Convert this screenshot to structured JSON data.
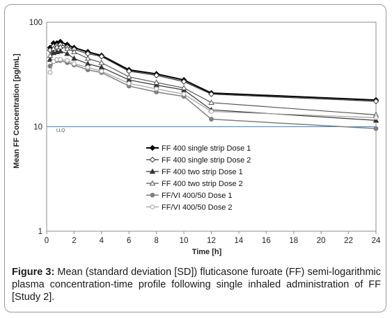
{
  "chart_data": {
    "type": "line",
    "xlabel": "Time [h]",
    "ylabel": "Mean FF Concentration [pg/mL]",
    "yscale": "log",
    "ylim": [
      1,
      100
    ],
    "xlim": [
      0,
      24
    ],
    "x_ticks": [
      0,
      2,
      4,
      6,
      8,
      10,
      12,
      14,
      16,
      18,
      20,
      22,
      24
    ],
    "y_ticks": [
      1,
      10,
      100
    ],
    "grid": "horizontal major",
    "legend_position": "center-left",
    "reference_line": {
      "label": "LLQ",
      "y": 10
    },
    "series": [
      {
        "name": "FF 400 single strip Dose 1",
        "color": "#000000",
        "marker": "diamond",
        "filled": true,
        "line_width": 2,
        "x": [
          0.25,
          0.5,
          0.75,
          1,
          1.5,
          2,
          3,
          4,
          6,
          8,
          10,
          12,
          24
        ],
        "y": [
          57,
          63,
          63,
          65,
          61,
          57,
          52,
          48,
          35,
          32,
          28,
          21,
          18
        ]
      },
      {
        "name": "FF 400 single strip Dose 2",
        "color": "#333333",
        "marker": "diamond",
        "filled": false,
        "line_width": 1.2,
        "x": [
          0.25,
          0.5,
          0.75,
          1,
          1.5,
          2,
          3,
          4,
          6,
          8,
          10,
          12,
          24
        ],
        "y": [
          54,
          59,
          60,
          61,
          58,
          55,
          50,
          47,
          34,
          31,
          27,
          20.5,
          17.5
        ]
      },
      {
        "name": "FF 400 two strip Dose 1",
        "color": "#333333",
        "marker": "triangle",
        "filled": true,
        "line_width": 1.2,
        "x": [
          0.25,
          0.5,
          0.75,
          1,
          1.5,
          2,
          3,
          4,
          6,
          8,
          10,
          12,
          24
        ],
        "y": [
          44,
          51,
          52,
          53,
          50,
          45,
          40,
          37,
          28,
          25,
          22.5,
          14.5,
          11.5
        ]
      },
      {
        "name": "FF 400 two strip Dose 2",
        "color": "#555555",
        "marker": "triangle",
        "filled": false,
        "line_width": 1.2,
        "x": [
          0.25,
          0.5,
          0.75,
          1,
          1.5,
          2,
          3,
          4,
          6,
          8,
          10,
          12,
          24
        ],
        "y": [
          48,
          56,
          58,
          58,
          56,
          52,
          45,
          41,
          30,
          26.5,
          23.5,
          17,
          13
        ]
      },
      {
        "name": "FF/VI 400/50 Dose 1",
        "color": "#7f7f7f",
        "marker": "circle",
        "filled": true,
        "line_width": 1.5,
        "x": [
          0.25,
          0.5,
          0.75,
          1,
          1.5,
          2,
          3,
          4,
          6,
          8,
          10,
          12,
          24
        ],
        "y": [
          38,
          42,
          43,
          43,
          41,
          39,
          35,
          33,
          24.5,
          21.5,
          19.5,
          11.8,
          9.6
        ]
      },
      {
        "name": "FF/VI 400/50 Dose 2",
        "color": "#a0a0a0",
        "marker": "circle",
        "filled": false,
        "line_width": 1.2,
        "x": [
          0.25,
          0.5,
          0.75,
          1,
          1.5,
          2,
          3,
          4,
          6,
          8,
          10,
          12,
          24
        ],
        "y": [
          33,
          42,
          44,
          44,
          43,
          40,
          37,
          34,
          26,
          23,
          20.5,
          14,
          12.2
        ]
      }
    ]
  },
  "caption": {
    "label": "Figure 3:",
    "text": " Mean (standard deviation [SD]) fluticasone furoate (FF) semi-logarithmic plasma concentration-time profile following single inhaled administration of FF [Study 2]."
  }
}
